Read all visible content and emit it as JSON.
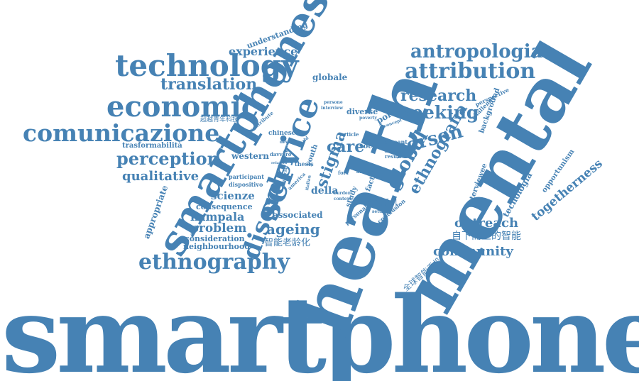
{
  "colors": {
    "word": "#4682b4",
    "background": "#ffffff"
  },
  "words": {
    "smartphone": "smartphone",
    "health": "health",
    "mental": "mental",
    "smartphones": "smartphones",
    "technology": "technology",
    "economic": "economic",
    "comunicazione": "comunicazione",
    "ethnography": "ethnography",
    "antropologia": "antropologia",
    "attribution": "attribution",
    "service": "service",
    "disorder": "disorder",
    "research": "research",
    "seeking": "seeking",
    "person": "person",
    "translation": "translation",
    "experience": "experience",
    "perception": "perception",
    "qualitative": "qualitative",
    "ethnografia": "ethnografia",
    "global": "global",
    "care": "care",
    "stigma": "stigma",
    "ageing": "ageing",
    "kampala": "kampala",
    "problem": "problem",
    "scienze": "scienze",
    "consequence": "consequence",
    "consideration": "consideration",
    "neighbourhood": "neighbourhood",
    "associated": "associated",
    "outreach": "outreach",
    "community": "community",
    "togetherness": "togetherness",
    "tecnologia": "tecnologia",
    "opportunism": "opportunism",
    "interviewee": "interviewee",
    "appropriate": "appropriate",
    "understanding": "understanding",
    "globale": "globale",
    "trasformabilita": "trasformabilità",
    "western": "western",
    "participant": "participant",
    "dispositivo": "dispositivo",
    "della": "della",
    "portal": "portal",
    "diverse": "diverse",
    "social": "social",
    "present": "present",
    "mobile": "mobile",
    "result": "result",
    "factor": "factor",
    "chinese": "chinese",
    "youth": "youth",
    "study": "study",
    "personal": "personal",
    "background": "background",
    "challenge": "challenge",
    "perspective": "perspective",
    "contribute": "contribute",
    "davvero": "davvero",
    "thesis": "thesis",
    "america": "america",
    "article": "article",
    "fort": "fort",
    "burden": "burden",
    "context": "context",
    "conclusion": "conclusion",
    "setting": "setting",
    "persone": "persone",
    "interview": "interview",
    "poverty": "poverty",
    "device": "device",
    "relation": "relation",
    "financial": "financial",
    "italian": "italian",
    "author": "author",
    "world": "world",
    "concept": "concept",
    "zh_chaoyue": "超越青年科技",
    "zh_shouji": "智能手机",
    "zh_laolinghua": "智能老龄化",
    "zh_zixia": "自下而上的智能",
    "zh_quanqiu": "全球智能手机"
  }
}
